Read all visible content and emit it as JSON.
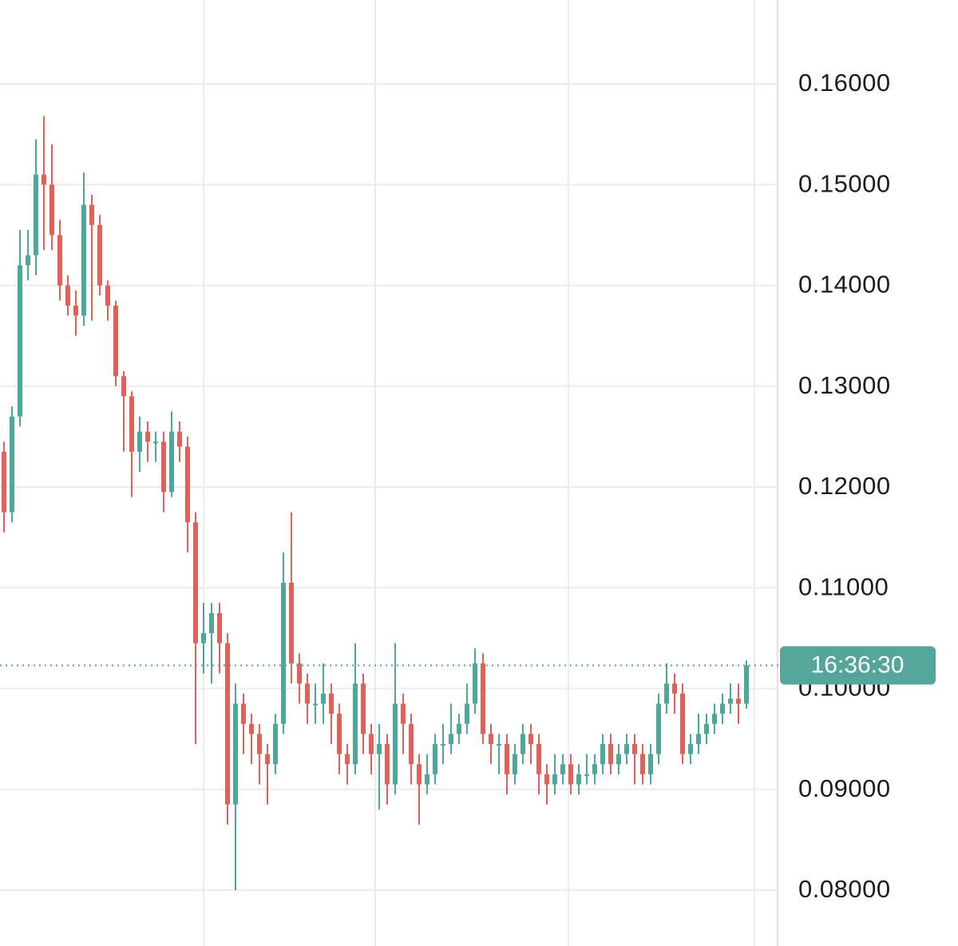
{
  "chart_data": {
    "type": "candlestick",
    "up_color": "#4fa69a",
    "down_color": "#e0605a",
    "ylim": [
      0.07446,
      0.16832
    ],
    "yticks": [
      {
        "value": 0.08,
        "label": "0.08000"
      },
      {
        "value": 0.09,
        "label": "0.09000"
      },
      {
        "value": 0.1,
        "label": "0.10000"
      },
      {
        "value": 0.11,
        "label": "0.11000"
      },
      {
        "value": 0.12,
        "label": "0.12000"
      },
      {
        "value": 0.13,
        "label": "0.13000"
      },
      {
        "value": 0.14,
        "label": "0.14000"
      },
      {
        "value": 0.15,
        "label": "0.15000"
      },
      {
        "value": 0.16,
        "label": "0.16000"
      }
    ],
    "grid": true,
    "last_price": 0.1023,
    "countdown": "16:36:30",
    "countdown_color": "#55a69a",
    "open": [
      0.1235,
      0.1175,
      0.127,
      0.142,
      0.143,
      0.151,
      0.15,
      0.145,
      0.14,
      0.138,
      0.137,
      0.148,
      0.146,
      0.14,
      0.138,
      0.131,
      0.129,
      0.1235,
      0.1255,
      0.1245,
      0.1245,
      0.1195,
      0.1255,
      0.124,
      0.1165,
      0.1045,
      0.1055,
      0.1075,
      0.1045,
      0.0885,
      0.0985,
      0.0965,
      0.0955,
      0.0935,
      0.0925,
      0.0965,
      0.1105,
      0.1025,
      0.1005,
      0.0985,
      0.0985,
      0.0995,
      0.0975,
      0.0935,
      0.0925,
      0.1005,
      0.0955,
      0.0935,
      0.0945,
      0.0905,
      0.0985,
      0.0965,
      0.0925,
      0.0905,
      0.0915,
      0.0945,
      0.0945,
      0.0955,
      0.0965,
      0.0985,
      0.1025,
      0.0955,
      0.0945,
      0.0945,
      0.0915,
      0.0935,
      0.0955,
      0.0945,
      0.0915,
      0.0905,
      0.0915,
      0.0925,
      0.0905,
      0.0915,
      0.0915,
      0.0925,
      0.0945,
      0.0925,
      0.0935,
      0.0945,
      0.0935,
      0.0915,
      0.0935,
      0.0985,
      0.1005,
      0.0995,
      0.0935,
      0.0945,
      0.0955,
      0.0965,
      0.0975,
      0.0985,
      0.099,
      0.0985
    ],
    "high": [
      0.1245,
      0.128,
      0.1455,
      0.1455,
      0.1545,
      0.1568,
      0.154,
      0.1465,
      0.141,
      0.1395,
      0.1512,
      0.149,
      0.147,
      0.1405,
      0.1385,
      0.1315,
      0.1295,
      0.127,
      0.1265,
      0.1255,
      0.1255,
      0.1275,
      0.1265,
      0.125,
      0.1175,
      0.1085,
      0.1085,
      0.1085,
      0.1055,
      0.1005,
      0.0995,
      0.0975,
      0.0965,
      0.0945,
      0.0975,
      0.1135,
      0.1175,
      0.1035,
      0.1015,
      0.1005,
      0.1025,
      0.1005,
      0.0985,
      0.0945,
      0.1045,
      0.1015,
      0.0965,
      0.0965,
      0.0955,
      0.1045,
      0.0995,
      0.0975,
      0.0935,
      0.0935,
      0.0955,
      0.0965,
      0.0985,
      0.0975,
      0.1005,
      0.104,
      0.1035,
      0.0965,
      0.0955,
      0.0955,
      0.0945,
      0.0965,
      0.0965,
      0.0955,
      0.0925,
      0.0935,
      0.0935,
      0.0935,
      0.0925,
      0.0935,
      0.0935,
      0.0955,
      0.0955,
      0.0945,
      0.0955,
      0.0955,
      0.0945,
      0.0945,
      0.0995,
      0.1025,
      0.1015,
      0.1005,
      0.0955,
      0.0975,
      0.0975,
      0.0985,
      0.0995,
      0.1005,
      0.1005,
      0.1028
    ],
    "low": [
      0.1155,
      0.1165,
      0.126,
      0.1405,
      0.141,
      0.1435,
      0.1435,
      0.1385,
      0.137,
      0.135,
      0.136,
      0.1365,
      0.139,
      0.1365,
      0.13,
      0.1235,
      0.119,
      0.1215,
      0.1225,
      0.1225,
      0.1175,
      0.119,
      0.1225,
      0.1135,
      0.0945,
      0.1015,
      0.1005,
      0.1015,
      0.0865,
      0.08,
      0.0935,
      0.0925,
      0.0905,
      0.0885,
      0.0915,
      0.0955,
      0.1005,
      0.0985,
      0.0965,
      0.0965,
      0.0965,
      0.0945,
      0.0915,
      0.0905,
      0.0915,
      0.0935,
      0.0915,
      0.088,
      0.0885,
      0.0895,
      0.0935,
      0.0905,
      0.0865,
      0.0895,
      0.0905,
      0.0925,
      0.0935,
      0.0945,
      0.0955,
      0.0975,
      0.0945,
      0.0925,
      0.0915,
      0.0895,
      0.0905,
      0.0925,
      0.0925,
      0.0895,
      0.0885,
      0.0895,
      0.0905,
      0.0895,
      0.0895,
      0.0905,
      0.0905,
      0.0915,
      0.0915,
      0.0915,
      0.0925,
      0.0905,
      0.0905,
      0.0905,
      0.0925,
      0.0975,
      0.0975,
      0.0925,
      0.0925,
      0.0935,
      0.0945,
      0.0955,
      0.0965,
      0.0975,
      0.0965,
      0.098
    ],
    "close": [
      0.1175,
      0.127,
      0.142,
      0.143,
      0.151,
      0.15,
      0.145,
      0.14,
      0.138,
      0.137,
      0.148,
      0.146,
      0.14,
      0.138,
      0.131,
      0.129,
      0.1235,
      0.1255,
      0.1245,
      0.1245,
      0.1195,
      0.1255,
      0.124,
      0.1165,
      0.1045,
      0.1055,
      0.1075,
      0.1045,
      0.0885,
      0.0985,
      0.0965,
      0.0955,
      0.0935,
      0.0925,
      0.0965,
      0.1105,
      0.1025,
      0.1005,
      0.0985,
      0.0985,
      0.0995,
      0.0975,
      0.0935,
      0.0925,
      0.1005,
      0.0955,
      0.0935,
      0.0945,
      0.0905,
      0.0985,
      0.0965,
      0.0925,
      0.0905,
      0.0915,
      0.0945,
      0.0945,
      0.0955,
      0.0965,
      0.0985,
      0.1025,
      0.0955,
      0.0945,
      0.0945,
      0.0915,
      0.0935,
      0.0955,
      0.0945,
      0.0915,
      0.0905,
      0.0915,
      0.0925,
      0.0905,
      0.0915,
      0.0915,
      0.0925,
      0.0945,
      0.0925,
      0.0935,
      0.0945,
      0.0935,
      0.0915,
      0.0935,
      0.0985,
      0.1005,
      0.0995,
      0.0935,
      0.0945,
      0.0955,
      0.0965,
      0.0975,
      0.0985,
      0.099,
      0.0985,
      0.1023
    ]
  }
}
